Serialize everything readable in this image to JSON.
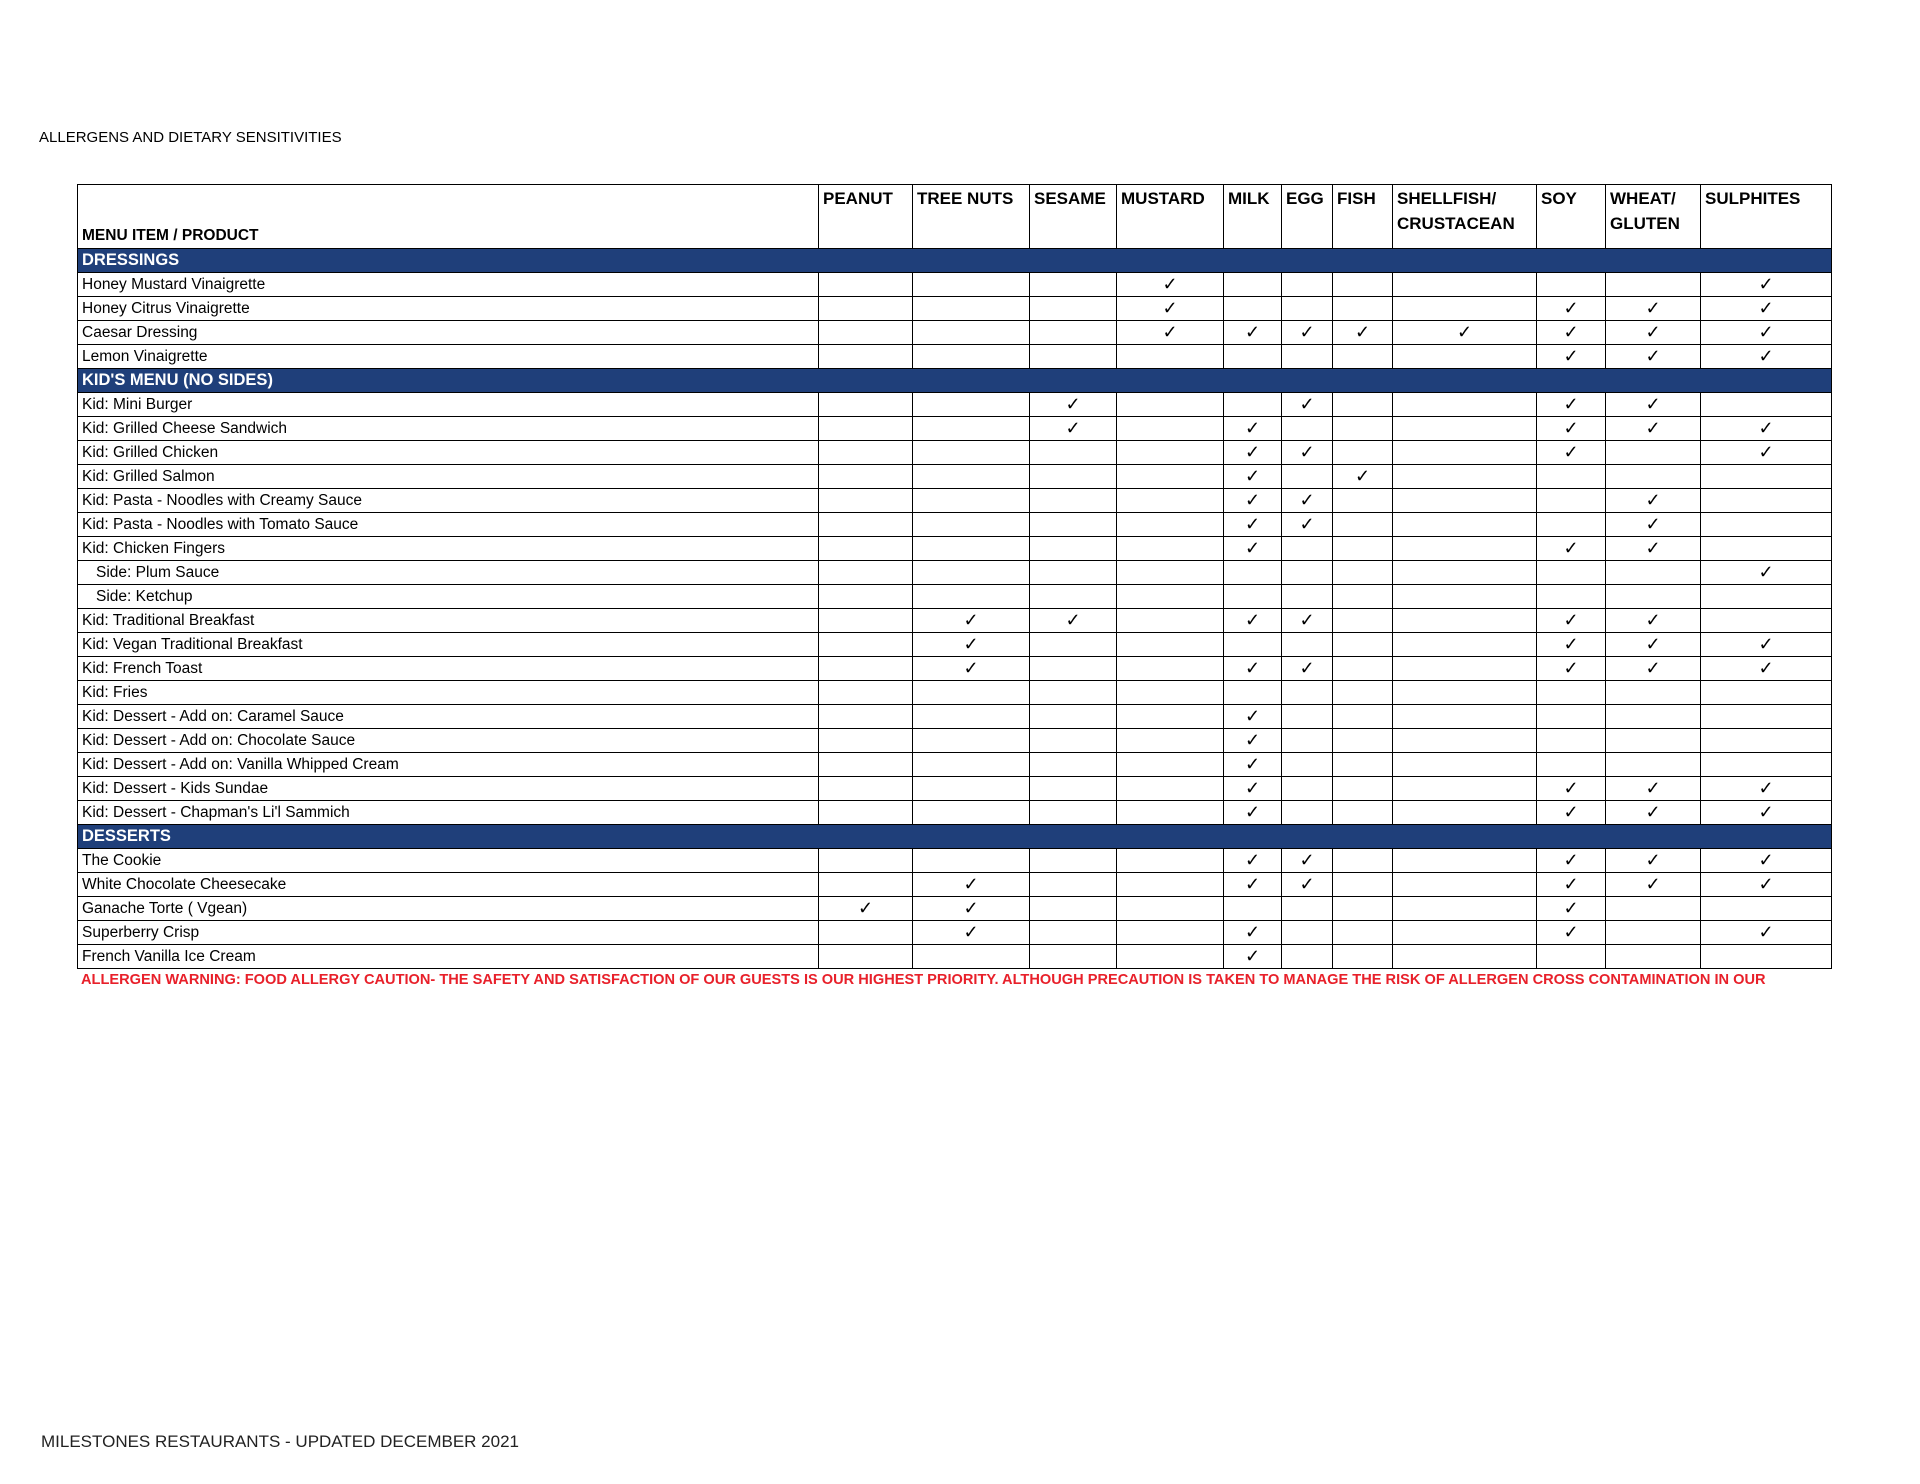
{
  "header": {
    "title": "ALLERGENS AND DIETARY SENSITIVITIES"
  },
  "table": {
    "item_header": "MENU ITEM / PRODUCT",
    "columns": [
      "PEANUT",
      "TREE NUTS",
      "SESAME",
      "MUSTARD",
      "MILK",
      "EGG",
      "FISH",
      "SHELLFISH/ CRUSTACEAN",
      "SOY",
      "WHEAT/ GLUTEN",
      "SULPHITES"
    ],
    "sections": [
      {
        "name": "DRESSINGS",
        "rows": [
          {
            "item": "Honey Mustard Vinaigrette",
            "checks": [
              null,
              null,
              null,
              "✓",
              null,
              null,
              null,
              null,
              null,
              null,
              "✓"
            ]
          },
          {
            "item": "Honey Citrus Vinaigrette",
            "checks": [
              null,
              null,
              null,
              "✓",
              null,
              null,
              null,
              null,
              "✓",
              "✓",
              "✓"
            ]
          },
          {
            "item": "Caesar Dressing",
            "checks": [
              null,
              null,
              null,
              "✓",
              "✓",
              "✓",
              "✓",
              "✓",
              "✓",
              "✓",
              "✓"
            ]
          },
          {
            "item": "Lemon Vinaigrette",
            "checks": [
              null,
              null,
              null,
              null,
              null,
              null,
              null,
              null,
              "✓",
              "✓",
              "✓"
            ]
          }
        ]
      },
      {
        "name": "KID'S MENU (NO SIDES)",
        "rows": [
          {
            "item": "Kid: Mini Burger",
            "checks": [
              null,
              null,
              "✓",
              null,
              null,
              "✓",
              null,
              null,
              "✓",
              "✓",
              null
            ]
          },
          {
            "item": "Kid: Grilled Cheese Sandwich",
            "checks": [
              null,
              null,
              "✓",
              null,
              "✓",
              null,
              null,
              null,
              "✓",
              "✓",
              "✓"
            ]
          },
          {
            "item": "Kid: Grilled Chicken",
            "checks": [
              null,
              null,
              null,
              null,
              "✓",
              "✓",
              null,
              null,
              "✓",
              null,
              "✓"
            ]
          },
          {
            "item": "Kid: Grilled Salmon",
            "checks": [
              null,
              null,
              null,
              null,
              "✓",
              null,
              "✓",
              null,
              null,
              null,
              null
            ]
          },
          {
            "item": "Kid: Pasta - Noodles with Creamy Sauce",
            "checks": [
              null,
              null,
              null,
              null,
              "✓",
              "✓",
              null,
              null,
              null,
              "✓",
              null
            ]
          },
          {
            "item": "Kid: Pasta - Noodles with Tomato Sauce",
            "checks": [
              null,
              null,
              null,
              null,
              "✓",
              "✓",
              null,
              null,
              null,
              "✓",
              null
            ]
          },
          {
            "item": "Kid: Chicken Fingers",
            "checks": [
              null,
              null,
              null,
              null,
              "✓",
              null,
              null,
              null,
              "✓",
              "✓",
              null
            ]
          },
          {
            "item": "Side: Plum Sauce",
            "checks": [
              null,
              null,
              null,
              null,
              null,
              null,
              null,
              null,
              null,
              null,
              "✓"
            ]
          },
          {
            "item": "Side: Ketchup",
            "checks": [
              null,
              null,
              null,
              null,
              null,
              null,
              null,
              null,
              null,
              null,
              null
            ]
          },
          {
            "item": "Kid: Traditional Breakfast",
            "checks": [
              null,
              "✓",
              "✓",
              null,
              "✓",
              "✓",
              null,
              null,
              "✓",
              "✓",
              null
            ]
          },
          {
            "item": "Kid: Vegan Traditional Breakfast",
            "checks": [
              null,
              "✓",
              null,
              null,
              null,
              null,
              null,
              null,
              "✓",
              "✓",
              "✓"
            ]
          },
          {
            "item": "Kid: French Toast",
            "checks": [
              null,
              "✓",
              null,
              null,
              "✓",
              "✓",
              null,
              null,
              "✓",
              "✓",
              "✓"
            ]
          },
          {
            "item": "Kid: Fries",
            "checks": [
              null,
              null,
              null,
              null,
              null,
              null,
              null,
              null,
              null,
              null,
              null
            ]
          },
          {
            "item": "Kid: Dessert  - Add on: Caramel Sauce",
            "checks": [
              null,
              null,
              null,
              null,
              "✓",
              null,
              null,
              null,
              null,
              null,
              null
            ]
          },
          {
            "item": "Kid: Dessert  - Add on: Chocolate Sauce",
            "checks": [
              null,
              null,
              null,
              null,
              "✓",
              null,
              null,
              null,
              null,
              null,
              null
            ]
          },
          {
            "item": "Kid: Dessert  - Add on: Vanilla Whipped Cream",
            "checks": [
              null,
              null,
              null,
              null,
              "✓",
              null,
              null,
              null,
              null,
              null,
              null
            ]
          },
          {
            "item": "Kid: Dessert  - Kids Sundae",
            "checks": [
              null,
              null,
              null,
              null,
              "✓",
              null,
              null,
              null,
              "✓",
              "✓",
              "✓"
            ]
          },
          {
            "item": "Kid: Dessert  - Chapman's Li'l  Sammich",
            "checks": [
              null,
              null,
              null,
              null,
              "✓",
              null,
              null,
              null,
              "✓",
              "✓",
              "✓"
            ]
          }
        ]
      },
      {
        "name": "DESSERTS",
        "rows": [
          {
            "item": "The Cookie",
            "checks": [
              null,
              null,
              null,
              null,
              "✓",
              "✓",
              null,
              null,
              "✓",
              "✓",
              "✓"
            ]
          },
          {
            "item": "White Chocolate Cheesecake",
            "checks": [
              null,
              "✓",
              null,
              null,
              "✓",
              "✓",
              null,
              null,
              "✓",
              "✓",
              "✓"
            ]
          },
          {
            "item": "Ganache Torte ( Vgean)",
            "checks": [
              "✓",
              "✓",
              null,
              null,
              null,
              null,
              null,
              null,
              "✓",
              null,
              null
            ]
          },
          {
            "item": "Superberry Crisp",
            "checks": [
              null,
              "✓",
              null,
              null,
              "✓",
              null,
              null,
              null,
              "✓",
              null,
              "✓"
            ]
          },
          {
            "item": "French Vanilla Ice Cream",
            "checks": [
              null,
              null,
              null,
              null,
              "✓",
              null,
              null,
              null,
              null,
              null,
              null
            ]
          }
        ]
      }
    ]
  },
  "warning": "ALLERGEN WARNING: FOOD ALLERGY CAUTION- THE SAFETY AND SATISFACTION OF OUR GUESTS IS OUR HIGHEST PRIORITY. ALTHOUGH PRECAUTION IS TAKEN TO MANAGE THE RISK OF ALLERGEN CROSS CONTAMINATION IN OUR",
  "footer": "MILESTONES RESTAURANTS - UPDATED DECEMBER 2021"
}
